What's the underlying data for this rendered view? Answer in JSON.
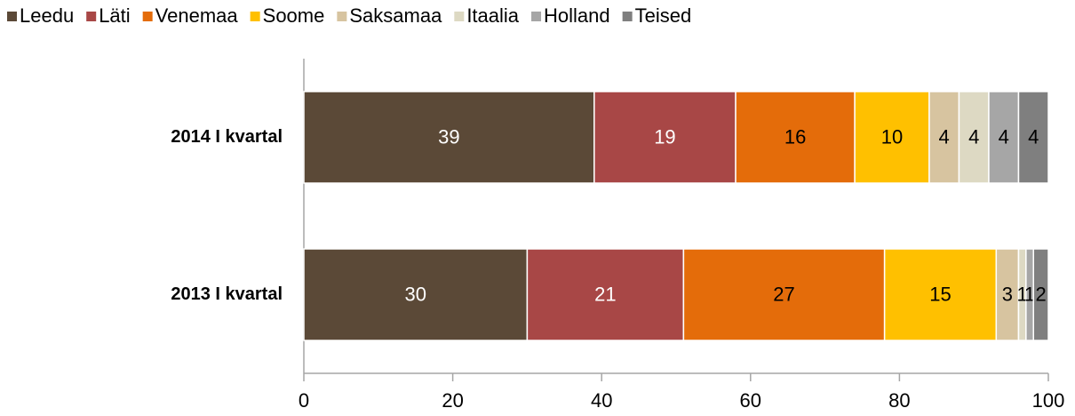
{
  "chart_data": {
    "type": "stacked-barh",
    "categories": [
      "2014 I kvartal",
      "2013 I kvartal"
    ],
    "series": [
      {
        "name": "Leedu",
        "color": "#5b4937",
        "label_color": "#ffffff",
        "values": [
          39,
          30
        ]
      },
      {
        "name": "Läti",
        "color": "#a84746",
        "label_color": "#ffffff",
        "values": [
          19,
          21
        ]
      },
      {
        "name": "Venemaa",
        "color": "#e46c0a",
        "label_color": "#000000",
        "values": [
          16,
          27
        ]
      },
      {
        "name": "Soome",
        "color": "#ffc000",
        "label_color": "#000000",
        "values": [
          10,
          15
        ]
      },
      {
        "name": "Saksamaa",
        "color": "#d7c4a0",
        "label_color": "#000000",
        "values": [
          4,
          3
        ]
      },
      {
        "name": "Itaalia",
        "color": "#ddd9c3",
        "label_color": "#000000",
        "values": [
          4,
          1
        ]
      },
      {
        "name": "Holland",
        "color": "#a6a6a6",
        "label_color": "#000000",
        "values": [
          4,
          1
        ]
      },
      {
        "name": "Teised",
        "color": "#7f7f7f",
        "label_color": "#000000",
        "values": [
          4,
          2
        ]
      }
    ],
    "xlim": [
      0,
      100
    ],
    "xticks": [
      0,
      20,
      40,
      60,
      80,
      100
    ],
    "legend": "top"
  }
}
